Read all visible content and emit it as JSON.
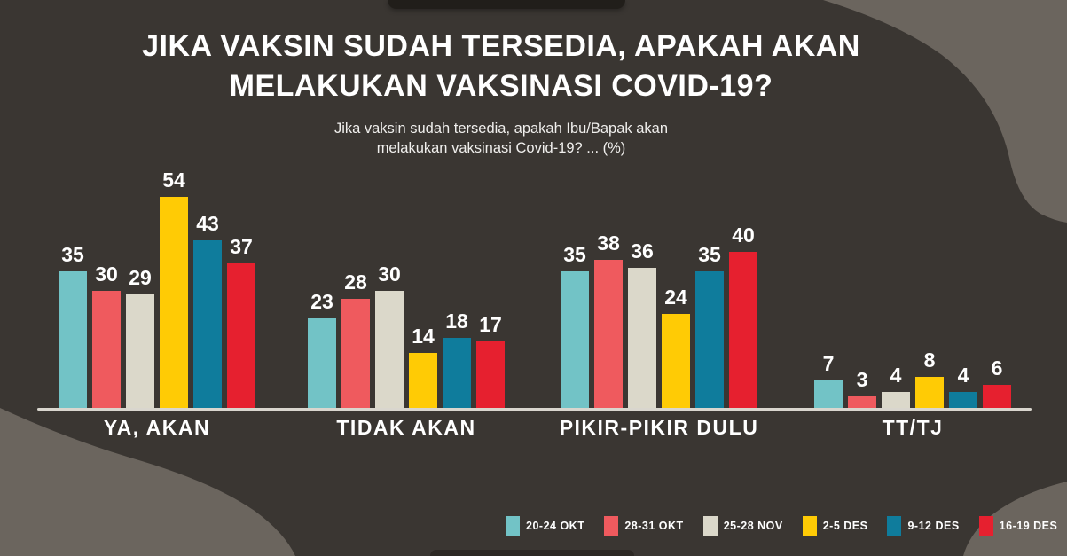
{
  "colors": {
    "background": "#3a3632",
    "blob": "#6b655e",
    "notch": "#211e1a",
    "baseline": "#d9d6ce",
    "text": "#ffffff",
    "subtitle_text": "#f0efed"
  },
  "header": {
    "title_line1": "JIKA VAKSIN SUDAH TERSEDIA, APAKAH AKAN",
    "title_line2": "MELAKUKAN VAKSINASI COVID-19?",
    "subtitle_line1": "Jika vaksin sudah tersedia, apakah Ibu/Bapak akan",
    "subtitle_line2": "melakukan vaksinasi Covid-19? ... (%)"
  },
  "chart_data": {
    "type": "bar",
    "title": "JIKA VAKSIN SUDAH TERSEDIA, APAKAH AKAN MELAKUKAN VAKSINASI COVID-19?",
    "subtitle": "Jika vaksin sudah tersedia, apakah Ibu/Bapak akan melakukan vaksinasi Covid-19? ... (%)",
    "categories": [
      "YA, AKAN",
      "TIDAK AKAN",
      "PIKIR-PIKIR DULU",
      "TT/TJ"
    ],
    "series": [
      {
        "name": "20-24 OKT",
        "color": "#72c3c6",
        "values": [
          35,
          23,
          35,
          7
        ]
      },
      {
        "name": "28-31 OKT",
        "color": "#ef5a5e",
        "values": [
          30,
          28,
          38,
          3
        ]
      },
      {
        "name": "25-28 NOV",
        "color": "#dbd8ca",
        "values": [
          29,
          30,
          36,
          4
        ]
      },
      {
        "name": "2-5 DES",
        "color": "#ffcb05",
        "values": [
          54,
          14,
          24,
          8
        ]
      },
      {
        "name": "9-12 DES",
        "color": "#0f7c9c",
        "values": [
          43,
          18,
          35,
          4
        ]
      },
      {
        "name": "16-19 DES",
        "color": "#e6202f",
        "values": [
          37,
          17,
          40,
          6
        ]
      }
    ],
    "value_labels": true,
    "legend_position": "bottom-right",
    "xlabel": "",
    "ylabel": "",
    "ylim": [
      0,
      60
    ],
    "grid": false
  }
}
